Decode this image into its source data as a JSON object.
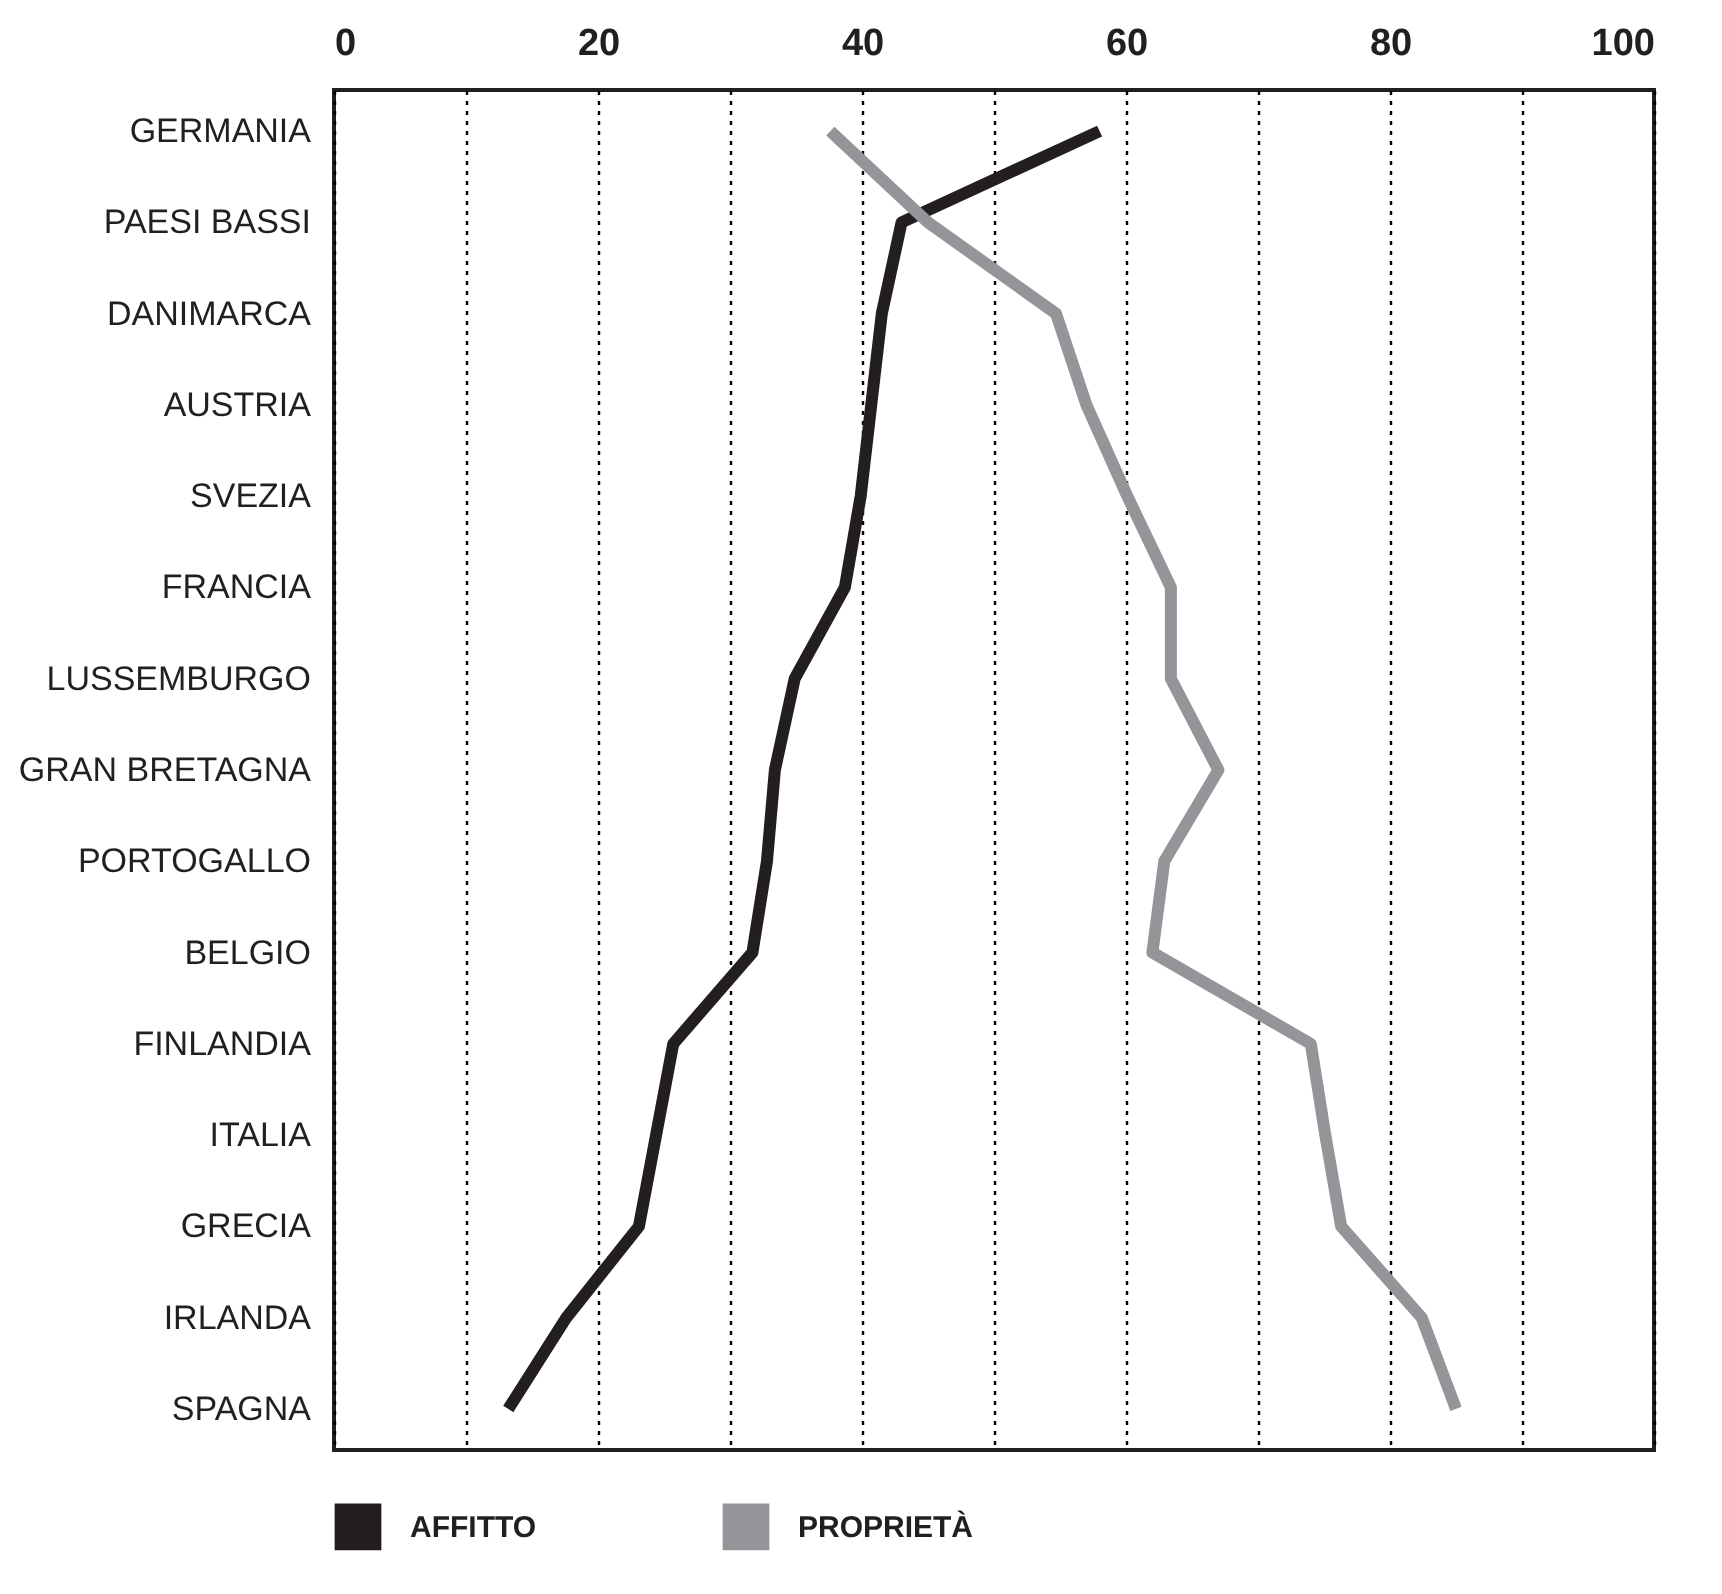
{
  "chart_data": {
    "type": "line",
    "orientation": "horizontal",
    "categories": [
      "GERMANIA",
      "PAESI BASSI",
      "DANIMARCA",
      "AUSTRIA",
      "SVEZIA",
      "FRANCIA",
      "LUSSEMBURGO",
      "GRAN BRETAGNA",
      "PORTOGALLO",
      "BELGIO",
      "FINLANDIA",
      "ITALIA",
      "GRECIA",
      "IRLANDA",
      "SPAGNA"
    ],
    "series": [
      {
        "name": "AFFITTO",
        "color": "#231f20",
        "values": [
          58,
          43,
          41.5,
          40.7,
          39.9,
          38.7,
          34.9,
          33.4,
          32.8,
          31.7,
          25.7,
          24.4,
          23.1,
          17.6,
          13.2
        ]
      },
      {
        "name": "PROPRIETÀ",
        "color": "#939598",
        "values": [
          37.6,
          45,
          54.7,
          57,
          60.1,
          63.4,
          63.4,
          67,
          62.9,
          62,
          74,
          75.1,
          76.3,
          82.4,
          85
        ]
      }
    ],
    "xlim": [
      0,
      100
    ],
    "xticks": [
      0,
      {
        "value": 10,
        "label": null
      },
      20,
      {
        "value": 30,
        "label": null
      },
      40,
      {
        "value": 50,
        "label": null
      },
      60,
      {
        "value": 70,
        "label": null
      },
      80,
      {
        "value": 90,
        "label": null
      },
      100
    ],
    "grid": "x",
    "legend": "bottom",
    "line_style": "solid"
  }
}
